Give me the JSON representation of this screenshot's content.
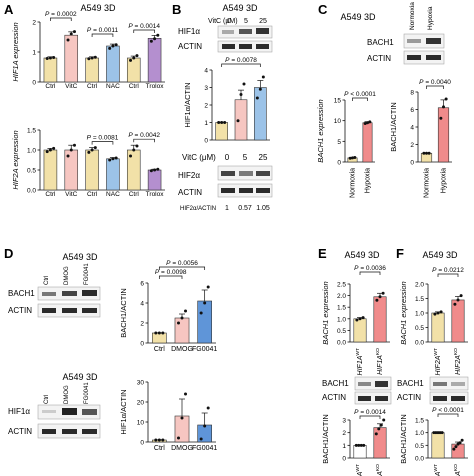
{
  "figure": {
    "panel_letters": [
      "A",
      "B",
      "C",
      "D",
      "E",
      "F"
    ],
    "colors": {
      "ctrl": "#f2e1a8",
      "vitc": "#f6c6c1",
      "nac": "#9cc3e8",
      "trolox": "#b48fcf",
      "normoxia": "#f2e1a8",
      "hypoxia": "#f08b8b",
      "dmog": "#f6c6c1",
      "fg0041": "#5f95d8",
      "wt": "#f2e1a8",
      "ko": "#f08b8b",
      "white": "#ffffff",
      "axis": "#111111",
      "band": "#222222"
    },
    "panelA": {
      "header": "A549 3D",
      "categories": [
        "Ctrl",
        "VitC",
        "Ctrl",
        "NAC",
        "Ctrl",
        "Trolox"
      ],
      "top": {
        "ylabel": "HIF1A expression",
        "ticks": [
          "0",
          "1",
          "2"
        ],
        "pvals": [
          "P = 0.0002",
          "P = 0.0011",
          "P = 0.0014"
        ]
      },
      "bottom": {
        "ylabel": "HIF2A expression",
        "ticks": [
          "0.0",
          "0.5",
          "1.0",
          "1.5"
        ],
        "pvals": [
          "P = 0.0081",
          "P = 0.0042"
        ]
      }
    },
    "panelB": {
      "header": "A549 3D",
      "vitc_row": [
        "VitC (μM)",
        "0",
        "5",
        "25"
      ],
      "blot_labels": [
        "HIF1α",
        "ACTIN"
      ],
      "ylabel": "HIF1α/ACTIN",
      "ticks": [
        "0",
        "1",
        "2",
        "3",
        "4"
      ],
      "pval": "P = 0.0078",
      "vitc_axis_label": "VitC (μM)",
      "x_labels": [
        "0",
        "5",
        "25"
      ],
      "lower_blot_labels": [
        "HIF2α",
        "ACTIN"
      ],
      "quant_label": "HIF2α/ACTIN",
      "quant_values": [
        "1",
        "0.57",
        "1.05"
      ]
    },
    "panelC": {
      "header": "A549 3D",
      "lane_labels": [
        "Normoxia",
        "Hypoxia"
      ],
      "blot_labels": [
        "BACH1",
        "ACTIN"
      ],
      "left": {
        "ylabel": "BACH1 expression",
        "ticks": [
          "0",
          "5",
          "10",
          "15"
        ],
        "pval": "P < 0.0001"
      },
      "right": {
        "ylabel": "BACH1/ACTIN",
        "ticks": [
          "0",
          "2",
          "4",
          "6",
          "8"
        ],
        "pval": "P = 0.0040"
      },
      "categories": [
        "Normoxia",
        "Hypoxia"
      ]
    },
    "panelD": {
      "header": "A549 3D",
      "lane_labels": [
        "Ctrl",
        "DMOG",
        "FG0041"
      ],
      "blot_labels_top": [
        "BACH1",
        "ACTIN"
      ],
      "blot_labels_bottom": [
        "HIF1α",
        "ACTIN"
      ],
      "top": {
        "ylabel": "BACH1/ACTIN",
        "ticks": [
          "0",
          "2",
          "4",
          "6"
        ],
        "pvals": [
          "P = 0.0098",
          "P = 0.0056"
        ]
      },
      "bottom": {
        "ylabel": "HIF1α/ACTIN",
        "ticks": [
          "0",
          "10",
          "20",
          "30"
        ]
      },
      "categories": [
        "Ctrl",
        "DMOG",
        "FG0041"
      ]
    },
    "panelE": {
      "header": "A549 3D",
      "top": {
        "ylabel": "BACH1 expression",
        "ticks": [
          "0.0",
          "0.5",
          "1.0",
          "1.5",
          "2.0",
          "2.5"
        ],
        "pval": "P = 0.0036"
      },
      "blot_labels": [
        "BACH1",
        "ACTIN"
      ],
      "bottom": {
        "ylabel": "BACH1/ACTIN",
        "ticks": [
          "0",
          "1",
          "2",
          "3"
        ],
        "pval": "P = 0.0014"
      },
      "categories": [
        "HIF1A^WT",
        "HIF1A^KO"
      ]
    },
    "panelF": {
      "header": "A549 3D",
      "top": {
        "ylabel": "BACH1 expression",
        "ticks": [
          "0.0",
          "0.5",
          "1.0",
          "1.5",
          "2.0"
        ],
        "pval": "P = 0.0212"
      },
      "blot_labels": [
        "BACH1",
        "ACTIN"
      ],
      "bottom": {
        "ylabel": "BACH1/ACTIN",
        "ticks": [
          "0.0",
          "0.5",
          "1.0",
          "1.5"
        ],
        "pval": "P < 0.0001"
      },
      "categories": [
        "HIF2A^WT",
        "HIF2A^KO"
      ]
    }
  },
  "chart_data": [
    {
      "id": "A-top",
      "type": "bar",
      "ylabel": "HIF1A expression",
      "ylim": [
        0,
        2.5
      ],
      "categories": [
        "Ctrl",
        "VitC",
        "Ctrl",
        "NAC",
        "Ctrl",
        "Trolox"
      ],
      "values": [
        1.0,
        1.95,
        1.0,
        1.5,
        1.0,
        1.82
      ],
      "errors": [
        0.05,
        0.14,
        0.05,
        0.08,
        0.08,
        0.12
      ],
      "points": [
        [
          0.98,
          1.0,
          1.02
        ],
        [
          1.75,
          2.0,
          2.1
        ],
        [
          0.97,
          1.0,
          1.03
        ],
        [
          1.4,
          1.5,
          1.55
        ],
        [
          0.9,
          1.0,
          1.1
        ],
        [
          1.7,
          1.8,
          1.95
        ]
      ],
      "colors": [
        "#f2e1a8",
        "#f6c6c1",
        "#f2e1a8",
        "#9cc3e8",
        "#f2e1a8",
        "#b48fcf"
      ],
      "brackets": [
        {
          "from": 0,
          "to": 1,
          "label": "P = 0.0002"
        },
        {
          "from": 2,
          "to": 3,
          "label": "P = 0.0011"
        },
        {
          "from": 4,
          "to": 5,
          "label": "P = 0.0014"
        }
      ]
    },
    {
      "id": "A-bottom",
      "type": "bar",
      "ylabel": "HIF2A expression",
      "ylim": [
        0,
        1.5
      ],
      "categories": [
        "Ctrl",
        "VitC",
        "Ctrl",
        "NAC",
        "Ctrl",
        "Trolox"
      ],
      "values": [
        1.0,
        1.0,
        1.0,
        0.78,
        1.0,
        0.5
      ],
      "errors": [
        0.04,
        0.12,
        0.06,
        0.03,
        0.12,
        0.02
      ],
      "points": [
        [
          0.96,
          1.0,
          1.04
        ],
        [
          0.85,
          1.0,
          1.12
        ],
        [
          0.94,
          1.0,
          1.06
        ],
        [
          0.75,
          0.78,
          0.8
        ],
        [
          0.85,
          1.0,
          1.1
        ],
        [
          0.48,
          0.5,
          0.52
        ]
      ],
      "colors": [
        "#f2e1a8",
        "#f6c6c1",
        "#f2e1a8",
        "#9cc3e8",
        "#f2e1a8",
        "#b48fcf"
      ],
      "brackets": [
        {
          "from": 2,
          "to": 3,
          "label": "P = 0.0081"
        },
        {
          "from": 4,
          "to": 5,
          "label": "P = 0.0042"
        }
      ]
    },
    {
      "id": "B",
      "type": "bar",
      "ylabel": "HIF1α/ACTIN",
      "xlabel": "VitC (μM)",
      "ylim": [
        0,
        4
      ],
      "categories": [
        "0",
        "5",
        "25"
      ],
      "values": [
        1.0,
        2.3,
        3.0
      ],
      "errors": [
        0.02,
        0.55,
        0.4
      ],
      "points": [
        [
          1.0,
          1.0,
          1.0
        ],
        [
          1.1,
          2.6,
          3.2
        ],
        [
          2.4,
          2.9,
          3.6
        ]
      ],
      "colors": [
        "#f2e1a8",
        "#f6c6c1",
        "#9cc3e8"
      ],
      "brackets": [
        {
          "from": 0,
          "to": 2,
          "label": "P = 0.0078"
        }
      ]
    },
    {
      "id": "C-left",
      "type": "bar",
      "ylabel": "BACH1 expression",
      "ylim": [
        0,
        15
      ],
      "categories": [
        "Normoxia",
        "Hypoxia"
      ],
      "values": [
        1.0,
        9.5
      ],
      "errors": [
        0.1,
        0.25
      ],
      "points": [
        [
          0.9,
          1.0,
          1.1
        ],
        [
          9.3,
          9.5,
          9.7
        ]
      ],
      "colors": [
        "#f2e1a8",
        "#f08b8b"
      ],
      "brackets": [
        {
          "from": 0,
          "to": 1,
          "label": "P < 0.0001"
        }
      ]
    },
    {
      "id": "C-right",
      "type": "bar",
      "ylabel": "BACH1/ACTIN",
      "ylim": [
        0,
        8
      ],
      "categories": [
        "Normoxia",
        "Hypoxia"
      ],
      "values": [
        1.0,
        6.2
      ],
      "errors": [
        0.05,
        0.9
      ],
      "points": [
        [
          1.0,
          1.0,
          1.0
        ],
        [
          5.0,
          6.3,
          7.2
        ]
      ],
      "colors": [
        "#f2e1a8",
        "#f08b8b"
      ],
      "brackets": [
        {
          "from": 0,
          "to": 1,
          "label": "P = 0.0040"
        }
      ]
    },
    {
      "id": "D-top",
      "type": "bar",
      "ylabel": "BACH1/ACTIN",
      "ylim": [
        0,
        6
      ],
      "categories": [
        "Ctrl",
        "DMOG",
        "FG0041"
      ],
      "values": [
        1.0,
        2.5,
        4.2
      ],
      "errors": [
        0.02,
        0.4,
        1.1
      ],
      "points": [
        [
          1.0,
          1.0,
          1.0
        ],
        [
          2.0,
          2.5,
          3.2
        ],
        [
          3.0,
          4.0,
          5.6
        ]
      ],
      "colors": [
        "#f2e1a8",
        "#f6c6c1",
        "#5f95d8"
      ],
      "brackets": [
        {
          "from": 0,
          "to": 1,
          "label": "P = 0.0098"
        },
        {
          "from": 0,
          "to": 2,
          "label": "P = 0.0056"
        }
      ]
    },
    {
      "id": "D-bottom",
      "type": "bar",
      "ylabel": "HIF1α/ACTIN",
      "ylim": [
        0,
        30
      ],
      "categories": [
        "Ctrl",
        "DMOG",
        "FG0041"
      ],
      "values": [
        1.0,
        13.0,
        8.5
      ],
      "errors": [
        0.1,
        8.5,
        6.0
      ],
      "points": [
        [
          1.0,
          1.0,
          1.0
        ],
        [
          2.0,
          12.0,
          24.0
        ],
        [
          1.5,
          8.0,
          17.0
        ]
      ],
      "colors": [
        "#f2e1a8",
        "#f6c6c1",
        "#5f95d8"
      ],
      "brackets": []
    },
    {
      "id": "E-top",
      "type": "bar",
      "ylabel": "BACH1 expression",
      "ylim": [
        0,
        2.5
      ],
      "categories": [
        "HIF1A^WT",
        "HIF1A^KO"
      ],
      "values": [
        1.0,
        1.95
      ],
      "errors": [
        0.05,
        0.15
      ],
      "points": [
        [
          0.95,
          1.0,
          1.05
        ],
        [
          1.8,
          1.95,
          2.1
        ]
      ],
      "colors": [
        "#f2e1a8",
        "#f08b8b"
      ],
      "brackets": [
        {
          "from": 0,
          "to": 1,
          "label": "P = 0.0036"
        }
      ]
    },
    {
      "id": "E-bottom",
      "type": "bar",
      "ylabel": "BACH1/ACTIN",
      "ylim": [
        0,
        3
      ],
      "categories": [
        "HIF1A^WT",
        "HIF1A^KO"
      ],
      "values": [
        1.0,
        2.4
      ],
      "errors": [
        0.02,
        0.3
      ],
      "points": [
        [
          1.0,
          1.0,
          1.0,
          1.0
        ],
        [
          1.9,
          2.3,
          2.6,
          3.0
        ]
      ],
      "colors": [
        "#ffffff",
        "#f08b8b"
      ],
      "brackets": [
        {
          "from": 0,
          "to": 1,
          "label": "P = 0.0014"
        }
      ]
    },
    {
      "id": "F-top",
      "type": "bar",
      "ylabel": "BACH1 expression",
      "ylim": [
        0,
        2.0
      ],
      "categories": [
        "HIF2A^WT",
        "HIF2A^KO"
      ],
      "values": [
        1.0,
        1.45
      ],
      "errors": [
        0.04,
        0.12
      ],
      "points": [
        [
          0.96,
          1.0,
          1.04
        ],
        [
          1.3,
          1.45,
          1.6
        ]
      ],
      "colors": [
        "#f2e1a8",
        "#f08b8b"
      ],
      "brackets": [
        {
          "from": 0,
          "to": 1,
          "label": "P = 0.0212"
        }
      ]
    },
    {
      "id": "F-bottom",
      "type": "bar",
      "ylabel": "BACH1/ACTIN",
      "ylim": [
        0,
        1.5
      ],
      "categories": [
        "HIF2A^WT",
        "HIF2A^KO"
      ],
      "values": [
        1.0,
        0.55
      ],
      "errors": [
        0.01,
        0.08
      ],
      "points": [
        [
          1.0,
          1.0,
          1.0,
          1.0,
          1.0
        ],
        [
          0.35,
          0.45,
          0.55,
          0.6,
          0.7
        ]
      ],
      "colors": [
        "#f2e1a8",
        "#f08b8b"
      ],
      "brackets": [
        {
          "from": 0,
          "to": 1,
          "label": "P < 0.0001"
        }
      ]
    }
  ]
}
